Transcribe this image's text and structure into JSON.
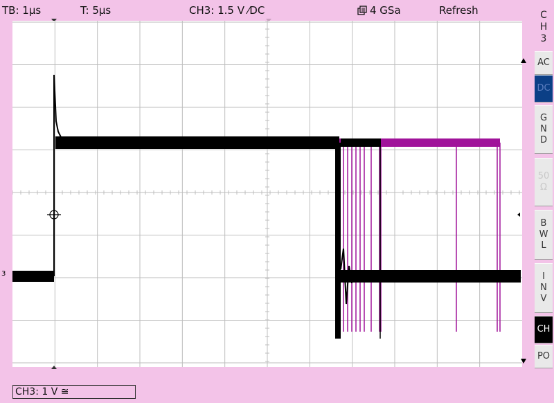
{
  "header": {
    "timebase": "TB: 1µs",
    "trigger_time": "T: 5µs",
    "channel_setting": "CH3: 1.5 V ⁄DC",
    "sample_rate": "4 GSa",
    "mode": "Refresh"
  },
  "sidebar": {
    "channel_label": [
      "C",
      "H",
      "3"
    ],
    "buttons": [
      {
        "id": "ac",
        "label": "AC",
        "state": "normal"
      },
      {
        "id": "dc",
        "label": "DC",
        "state": "active"
      },
      {
        "id": "gnd",
        "label": "G N D",
        "state": "normal"
      },
      {
        "id": "fifty",
        "label": "50 Ω",
        "state": "disabled"
      },
      {
        "id": "bwl",
        "label": "B W L",
        "state": "normal"
      },
      {
        "id": "inv",
        "label": "I N V",
        "state": "normal"
      },
      {
        "id": "ch",
        "label": "CH",
        "state": "dark"
      },
      {
        "id": "po",
        "label": "PO",
        "state": "normal"
      }
    ]
  },
  "footer": {
    "channel_scale": "CH3: 1 V ≅"
  },
  "display": {
    "channel_marker": "3",
    "grid_divisions_x": 12,
    "grid_divisions_y": 8,
    "colors": {
      "trace_current": "#000000",
      "trace_persist": "#a0139a",
      "grid": "#bdbdbd",
      "background": "#f3c3e8"
    }
  }
}
